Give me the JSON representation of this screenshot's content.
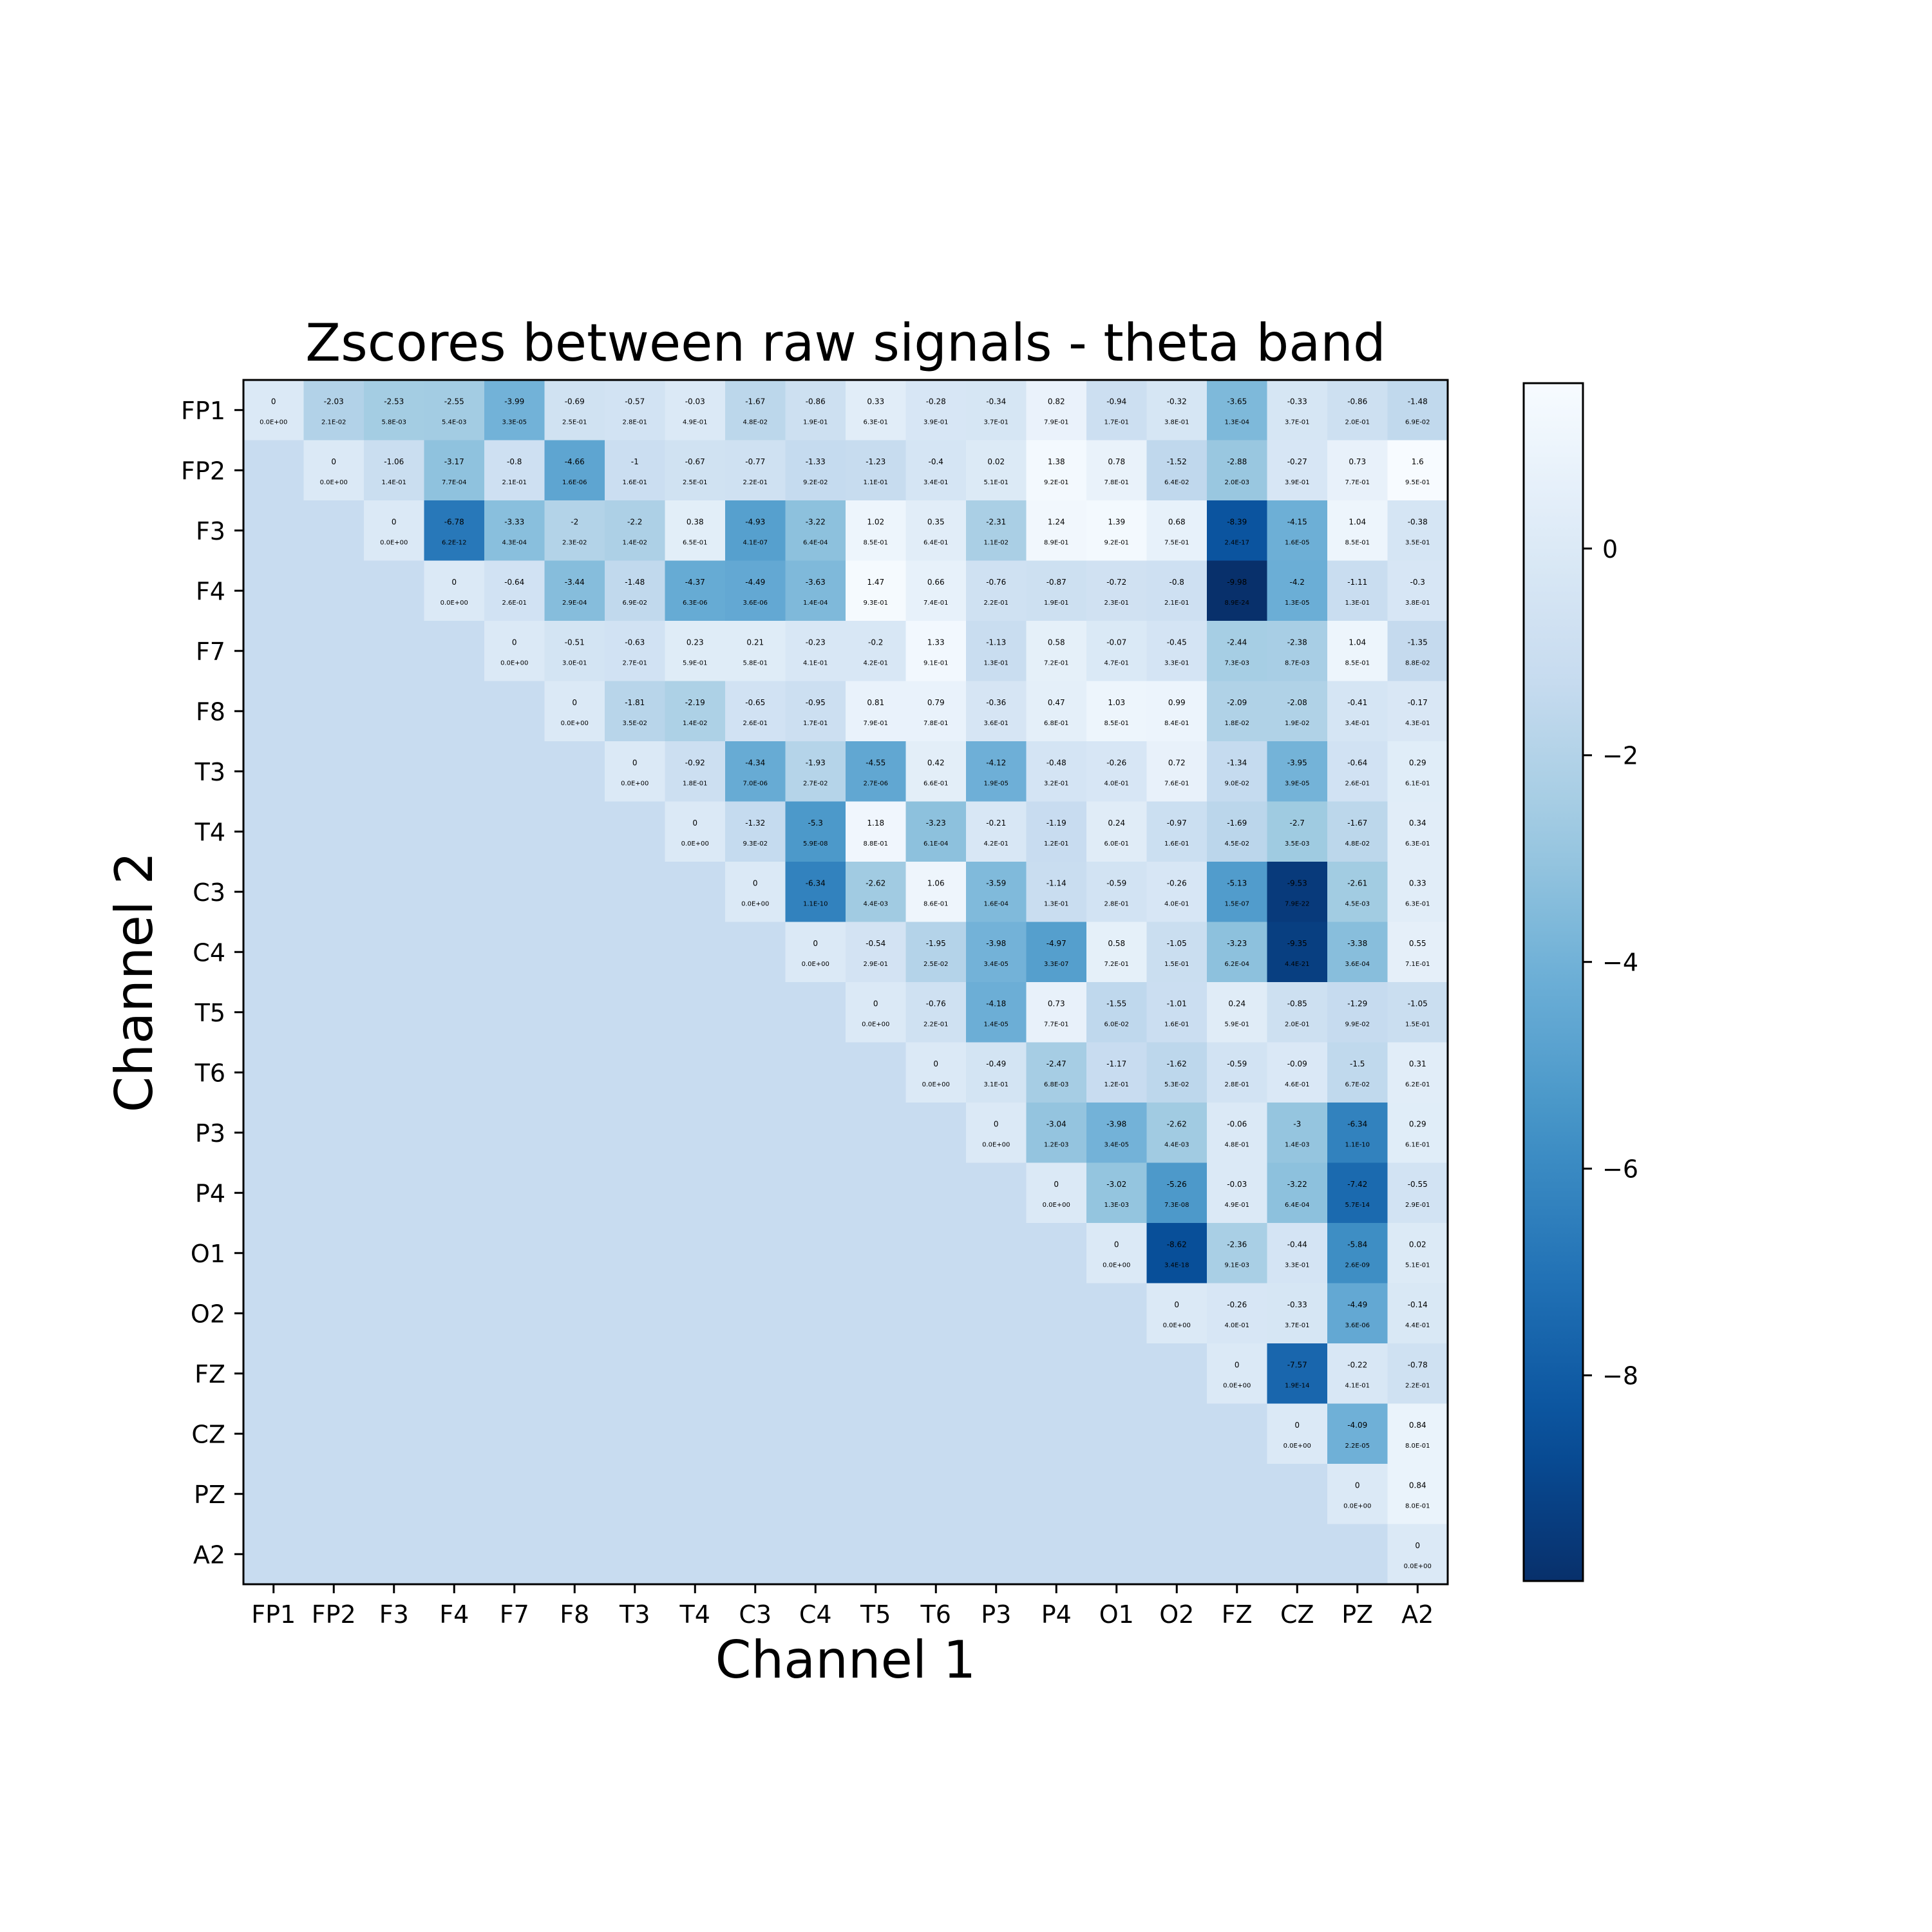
{
  "chart_data": {
    "type": "heatmap",
    "title": "Zscores between raw signals - theta band",
    "xlabel": "Channel 1",
    "ylabel": "Channel 2",
    "channels": [
      "FP1",
      "FP2",
      "F3",
      "F4",
      "F7",
      "F8",
      "T3",
      "T4",
      "C3",
      "C4",
      "T5",
      "T6",
      "P3",
      "P4",
      "O1",
      "O2",
      "FZ",
      "CZ",
      "PZ",
      "A2"
    ],
    "colormap": "Blues_r",
    "vmin": -9.99,
    "vmax": 1.6,
    "lower_triangle_fill_value": -1.2,
    "colorbar_ticks": [
      0,
      -2,
      -4,
      -6,
      -8
    ],
    "colorbar_tick_labels": [
      "0",
      "−2",
      "−4",
      "−6",
      "−8"
    ],
    "zscores": [
      [
        0.0,
        -2.03,
        -2.53,
        -2.55,
        -3.99,
        -0.69,
        -0.57,
        -0.03,
        -1.67,
        -0.86,
        0.33,
        -0.28,
        -0.34,
        0.82,
        -0.94,
        -0.32,
        -3.65,
        -0.33,
        -0.86,
        -1.48
      ],
      [
        null,
        0.0,
        -1.06,
        -3.17,
        -0.8,
        -4.66,
        -1.0,
        -0.67,
        -0.77,
        -1.33,
        -1.23,
        -0.4,
        0.02,
        1.38,
        0.78,
        -1.52,
        -2.88,
        -0.27,
        0.73,
        1.6
      ],
      [
        null,
        null,
        0.0,
        -6.78,
        -3.33,
        -2.0,
        -2.2,
        0.38,
        -4.93,
        -3.22,
        1.02,
        0.35,
        -2.31,
        1.24,
        1.39,
        0.68,
        -8.39,
        -4.15,
        1.04,
        -0.38
      ],
      [
        null,
        null,
        null,
        0.0,
        -0.64,
        -3.44,
        -1.48,
        -4.37,
        -4.49,
        -3.63,
        1.47,
        0.66,
        -0.76,
        -0.87,
        -0.72,
        -0.8,
        -9.98,
        -4.2,
        -1.11,
        -0.3
      ],
      [
        null,
        null,
        null,
        null,
        0.0,
        -0.51,
        -0.63,
        0.23,
        0.21,
        -0.23,
        -0.2,
        1.33,
        -1.13,
        0.58,
        -0.07,
        -0.45,
        -2.44,
        -2.38,
        1.04,
        -1.35
      ],
      [
        null,
        null,
        null,
        null,
        null,
        0.0,
        -1.81,
        -2.19,
        -0.65,
        -0.95,
        0.81,
        0.79,
        -0.36,
        0.47,
        1.03,
        0.99,
        -2.09,
        -2.08,
        -0.41,
        -0.17
      ],
      [
        null,
        null,
        null,
        null,
        null,
        null,
        0.0,
        -0.92,
        -4.34,
        -1.93,
        -4.55,
        0.42,
        -4.12,
        -0.48,
        -0.26,
        0.72,
        -1.34,
        -3.95,
        -0.64,
        0.29
      ],
      [
        null,
        null,
        null,
        null,
        null,
        null,
        null,
        0.0,
        -1.32,
        -5.3,
        1.18,
        -3.23,
        -0.21,
        -1.19,
        0.24,
        -0.97,
        -1.69,
        -2.7,
        -1.67,
        0.34
      ],
      [
        null,
        null,
        null,
        null,
        null,
        null,
        null,
        null,
        0.0,
        -6.34,
        -2.62,
        1.06,
        -3.59,
        -1.14,
        -0.59,
        -0.26,
        -5.13,
        -9.53,
        -2.61,
        0.33
      ],
      [
        null,
        null,
        null,
        null,
        null,
        null,
        null,
        null,
        null,
        0.0,
        -0.54,
        -1.95,
        -3.98,
        -4.97,
        0.58,
        -1.05,
        -3.23,
        -9.35,
        -3.38,
        0.55
      ],
      [
        null,
        null,
        null,
        null,
        null,
        null,
        null,
        null,
        null,
        null,
        0.0,
        -0.76,
        -4.18,
        0.73,
        -1.55,
        -1.01,
        0.24,
        -0.85,
        -1.29,
        -1.05
      ],
      [
        null,
        null,
        null,
        null,
        null,
        null,
        null,
        null,
        null,
        null,
        null,
        0.0,
        -0.49,
        -2.47,
        -1.17,
        -1.62,
        -0.59,
        -0.09,
        -1.5,
        0.31
      ],
      [
        null,
        null,
        null,
        null,
        null,
        null,
        null,
        null,
        null,
        null,
        null,
        null,
        0.0,
        -3.04,
        -3.98,
        -2.62,
        -0.06,
        -3.0,
        -6.34,
        0.29
      ],
      [
        null,
        null,
        null,
        null,
        null,
        null,
        null,
        null,
        null,
        null,
        null,
        null,
        null,
        0.0,
        -3.02,
        -5.26,
        -0.03,
        -3.22,
        -7.42,
        -0.55
      ],
      [
        null,
        null,
        null,
        null,
        null,
        null,
        null,
        null,
        null,
        null,
        null,
        null,
        null,
        null,
        0.0,
        -8.62,
        -2.36,
        -0.44,
        -5.84,
        0.02
      ],
      [
        null,
        null,
        null,
        null,
        null,
        null,
        null,
        null,
        null,
        null,
        null,
        null,
        null,
        null,
        null,
        0.0,
        -0.26,
        -0.33,
        -4.49,
        -0.14
      ],
      [
        null,
        null,
        null,
        null,
        null,
        null,
        null,
        null,
        null,
        null,
        null,
        null,
        null,
        null,
        null,
        null,
        0.0,
        -7.57,
        -0.22,
        -0.78
      ],
      [
        null,
        null,
        null,
        null,
        null,
        null,
        null,
        null,
        null,
        null,
        null,
        null,
        null,
        null,
        null,
        null,
        null,
        0.0,
        -4.09,
        0.84
      ],
      [
        null,
        null,
        null,
        null,
        null,
        null,
        null,
        null,
        null,
        null,
        null,
        null,
        null,
        null,
        null,
        null,
        null,
        null,
        0.0,
        0.84
      ],
      [
        null,
        null,
        null,
        null,
        null,
        null,
        null,
        null,
        null,
        null,
        null,
        null,
        null,
        null,
        null,
        null,
        null,
        null,
        null,
        0.0
      ]
    ],
    "pvalues": [
      [
        "0.0E+00",
        "2.1E-02",
        "5.8E-03",
        "5.4E-03",
        "3.3E-05",
        "2.5E-01",
        "2.8E-01",
        "4.9E-01",
        "4.8E-02",
        "1.9E-01",
        "6.3E-01",
        "3.9E-01",
        "3.7E-01",
        "7.9E-01",
        "1.7E-01",
        "3.8E-01",
        "1.3E-04",
        "3.7E-01",
        "2.0E-01",
        "6.9E-02"
      ],
      [
        null,
        "0.0E+00",
        "1.4E-01",
        "7.7E-04",
        "2.1E-01",
        "1.6E-06",
        "1.6E-01",
        "2.5E-01",
        "2.2E-01",
        "9.2E-02",
        "1.1E-01",
        "3.4E-01",
        "5.1E-01",
        "9.2E-01",
        "7.8E-01",
        "6.4E-02",
        "2.0E-03",
        "3.9E-01",
        "7.7E-01",
        "9.5E-01"
      ],
      [
        null,
        null,
        "0.0E+00",
        "6.2E-12",
        "4.3E-04",
        "2.3E-02",
        "1.4E-02",
        "6.5E-01",
        "4.1E-07",
        "6.4E-04",
        "8.5E-01",
        "6.4E-01",
        "1.1E-02",
        "8.9E-01",
        "9.2E-01",
        "7.5E-01",
        "2.4E-17",
        "1.6E-05",
        "8.5E-01",
        "3.5E-01"
      ],
      [
        null,
        null,
        null,
        "0.0E+00",
        "2.6E-01",
        "2.9E-04",
        "6.9E-02",
        "6.3E-06",
        "3.6E-06",
        "1.4E-04",
        "9.3E-01",
        "7.4E-01",
        "2.2E-01",
        "1.9E-01",
        "2.3E-01",
        "2.1E-01",
        "8.9E-24",
        "1.3E-05",
        "1.3E-01",
        "3.8E-01"
      ],
      [
        null,
        null,
        null,
        null,
        "0.0E+00",
        "3.0E-01",
        "2.7E-01",
        "5.9E-01",
        "5.8E-01",
        "4.1E-01",
        "4.2E-01",
        "9.1E-01",
        "1.3E-01",
        "7.2E-01",
        "4.7E-01",
        "3.3E-01",
        "7.3E-03",
        "8.7E-03",
        "8.5E-01",
        "8.8E-02"
      ],
      [
        null,
        null,
        null,
        null,
        null,
        "0.0E+00",
        "3.5E-02",
        "1.4E-02",
        "2.6E-01",
        "1.7E-01",
        "7.9E-01",
        "7.8E-01",
        "3.6E-01",
        "6.8E-01",
        "8.5E-01",
        "8.4E-01",
        "1.8E-02",
        "1.9E-02",
        "3.4E-01",
        "4.3E-01"
      ],
      [
        null,
        null,
        null,
        null,
        null,
        null,
        "0.0E+00",
        "1.8E-01",
        "7.0E-06",
        "2.7E-02",
        "2.7E-06",
        "6.6E-01",
        "1.9E-05",
        "3.2E-01",
        "4.0E-01",
        "7.6E-01",
        "9.0E-02",
        "3.9E-05",
        "2.6E-01",
        "6.1E-01"
      ],
      [
        null,
        null,
        null,
        null,
        null,
        null,
        null,
        "0.0E+00",
        "9.3E-02",
        "5.9E-08",
        "8.8E-01",
        "6.1E-04",
        "4.2E-01",
        "1.2E-01",
        "6.0E-01",
        "1.6E-01",
        "4.5E-02",
        "3.5E-03",
        "4.8E-02",
        "6.3E-01"
      ],
      [
        null,
        null,
        null,
        null,
        null,
        null,
        null,
        null,
        "0.0E+00",
        "1.1E-10",
        "4.4E-03",
        "8.6E-01",
        "1.6E-04",
        "1.3E-01",
        "2.8E-01",
        "4.0E-01",
        "1.5E-07",
        "7.9E-22",
        "4.5E-03",
        "6.3E-01"
      ],
      [
        null,
        null,
        null,
        null,
        null,
        null,
        null,
        null,
        null,
        "0.0E+00",
        "2.9E-01",
        "2.5E-02",
        "3.4E-05",
        "3.3E-07",
        "7.2E-01",
        "1.5E-01",
        "6.2E-04",
        "4.4E-21",
        "3.6E-04",
        "7.1E-01"
      ],
      [
        null,
        null,
        null,
        null,
        null,
        null,
        null,
        null,
        null,
        null,
        "0.0E+00",
        "2.2E-01",
        "1.4E-05",
        "7.7E-01",
        "6.0E-02",
        "1.6E-01",
        "5.9E-01",
        "2.0E-01",
        "9.9E-02",
        "1.5E-01"
      ],
      [
        null,
        null,
        null,
        null,
        null,
        null,
        null,
        null,
        null,
        null,
        null,
        "0.0E+00",
        "3.1E-01",
        "6.8E-03",
        "1.2E-01",
        "5.3E-02",
        "2.8E-01",
        "4.6E-01",
        "6.7E-02",
        "6.2E-01"
      ],
      [
        null,
        null,
        null,
        null,
        null,
        null,
        null,
        null,
        null,
        null,
        null,
        null,
        "0.0E+00",
        "1.2E-03",
        "3.4E-05",
        "4.4E-03",
        "4.8E-01",
        "1.4E-03",
        "1.1E-10",
        "6.1E-01"
      ],
      [
        null,
        null,
        null,
        null,
        null,
        null,
        null,
        null,
        null,
        null,
        null,
        null,
        null,
        "0.0E+00",
        "1.3E-03",
        "7.3E-08",
        "4.9E-01",
        "6.4E-04",
        "5.7E-14",
        "2.9E-01"
      ],
      [
        null,
        null,
        null,
        null,
        null,
        null,
        null,
        null,
        null,
        null,
        null,
        null,
        null,
        null,
        "0.0E+00",
        "3.4E-18",
        "9.1E-03",
        "3.3E-01",
        "2.6E-09",
        "5.1E-01"
      ],
      [
        null,
        null,
        null,
        null,
        null,
        null,
        null,
        null,
        null,
        null,
        null,
        null,
        null,
        null,
        null,
        "0.0E+00",
        "4.0E-01",
        "3.7E-01",
        "3.6E-06",
        "4.4E-01"
      ],
      [
        null,
        null,
        null,
        null,
        null,
        null,
        null,
        null,
        null,
        null,
        null,
        null,
        null,
        null,
        null,
        null,
        "0.0E+00",
        "1.9E-14",
        "4.1E-01",
        "2.2E-01"
      ],
      [
        null,
        null,
        null,
        null,
        null,
        null,
        null,
        null,
        null,
        null,
        null,
        null,
        null,
        null,
        null,
        null,
        null,
        "0.0E+00",
        "2.2E-05",
        "8.0E-01"
      ],
      [
        null,
        null,
        null,
        null,
        null,
        null,
        null,
        null,
        null,
        null,
        null,
        null,
        null,
        null,
        null,
        null,
        null,
        null,
        "0.0E+00",
        "8.0E-01"
      ],
      [
        null,
        null,
        null,
        null,
        null,
        null,
        null,
        null,
        null,
        null,
        null,
        null,
        null,
        null,
        null,
        null,
        null,
        null,
        null,
        "0.0E+00"
      ]
    ]
  }
}
